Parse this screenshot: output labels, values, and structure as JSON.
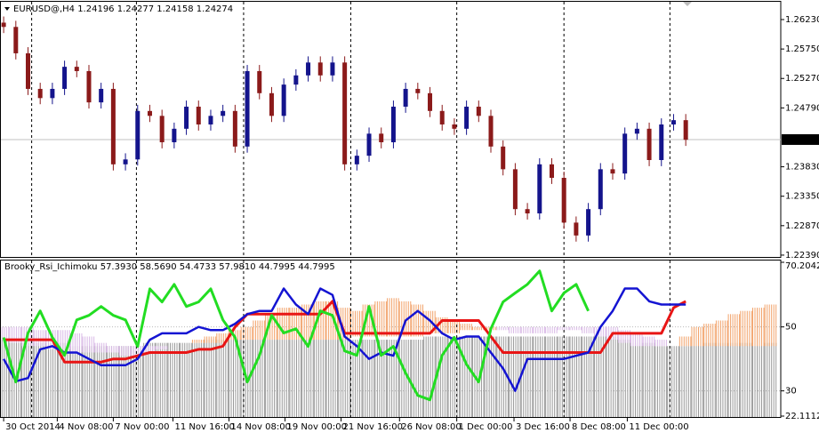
{
  "chart_data": [
    {
      "type": "candlestick",
      "title": "EURUSD@,H4 1.24196 1.24277 1.24158 1.24274",
      "open": [
        1.2618,
        1.2611,
        1.2568,
        1.251,
        1.2495,
        1.251,
        1.2546,
        1.2539,
        1.2488,
        1.251,
        1.2387,
        1.2395,
        1.2474,
        1.2466,
        1.2423,
        1.2445,
        1.2481,
        1.2452,
        1.2466,
        1.2474,
        1.2416,
        1.2539,
        1.2503,
        1.2466,
        1.2517,
        1.2532,
        1.2553,
        1.2532,
        1.2553,
        1.2387,
        1.2401,
        1.2437,
        1.2423,
        1.2481,
        1.251,
        1.2503,
        1.2474,
        1.2452,
        1.2445,
        1.2481,
        1.2466,
        1.2416,
        1.2379,
        1.2314,
        1.2307,
        1.2387,
        1.2365,
        1.2292,
        1.2271,
        1.2314,
        1.2379,
        1.2372,
        1.2437,
        1.2445,
        1.2394,
        1.2452,
        1.2459
      ],
      "high": [
        1.2628,
        1.2621,
        1.2578,
        1.252,
        1.252,
        1.2556,
        1.2556,
        1.2549,
        1.252,
        1.252,
        1.2405,
        1.2484,
        1.2484,
        1.2476,
        1.2455,
        1.2491,
        1.2491,
        1.2476,
        1.2484,
        1.2484,
        1.2549,
        1.2549,
        1.2513,
        1.2527,
        1.2542,
        1.2563,
        1.2563,
        1.2563,
        1.2563,
        1.2411,
        1.2447,
        1.2447,
        1.2491,
        1.252,
        1.252,
        1.2513,
        1.2484,
        1.2462,
        1.2491,
        1.2491,
        1.2476,
        1.2426,
        1.2389,
        1.2324,
        1.2397,
        1.2397,
        1.2375,
        1.2302,
        1.2324,
        1.2389,
        1.2389,
        1.2447,
        1.2455,
        1.2455,
        1.2462,
        1.2469,
        1.2469
      ],
      "low": [
        1.2601,
        1.2558,
        1.25,
        1.2485,
        1.2485,
        1.25,
        1.2529,
        1.2478,
        1.2478,
        1.2377,
        1.2377,
        1.2385,
        1.2456,
        1.2413,
        1.2413,
        1.2435,
        1.2442,
        1.2442,
        1.2456,
        1.2406,
        1.2406,
        1.2493,
        1.2456,
        1.2456,
        1.2507,
        1.2522,
        1.2522,
        1.2522,
        1.2377,
        1.2377,
        1.2391,
        1.2413,
        1.2413,
        1.2471,
        1.2493,
        1.2464,
        1.2442,
        1.2435,
        1.2435,
        1.2456,
        1.2406,
        1.2369,
        1.2304,
        1.2297,
        1.2297,
        1.2355,
        1.2282,
        1.2261,
        1.2261,
        1.2304,
        1.2362,
        1.2362,
        1.2427,
        1.2384,
        1.2384,
        1.2442,
        1.2417
      ],
      "close": [
        1.2611,
        1.2568,
        1.251,
        1.2495,
        1.251,
        1.2546,
        1.2539,
        1.2488,
        1.251,
        1.2387,
        1.2395,
        1.2474,
        1.2466,
        1.2423,
        1.2445,
        1.2481,
        1.2452,
        1.2466,
        1.2474,
        1.2416,
        1.2539,
        1.2503,
        1.2466,
        1.2517,
        1.2532,
        1.2553,
        1.2532,
        1.2553,
        1.2387,
        1.2401,
        1.2437,
        1.2423,
        1.2481,
        1.251,
        1.2503,
        1.2474,
        1.2452,
        1.2445,
        1.2481,
        1.2466,
        1.2416,
        1.2379,
        1.2314,
        1.2307,
        1.2387,
        1.2365,
        1.2292,
        1.2271,
        1.2314,
        1.2379,
        1.2372,
        1.2437,
        1.2445,
        1.2394,
        1.2452,
        1.2459,
        1.2427
      ],
      "up_color": "#14148c",
      "down_color": "#8b1a1a",
      "current_price": 1.24274,
      "ylim": [
        1.2236,
        1.2652
      ],
      "yticks": [
        {
          "value": 1.2623,
          "label": "1.26230"
        },
        {
          "value": 1.2575,
          "label": "1.25750"
        },
        {
          "value": 1.2527,
          "label": "1.25270"
        },
        {
          "value": 1.2479,
          "label": "1.24790"
        },
        {
          "value": 1.2383,
          "label": "1.23830"
        },
        {
          "value": 1.2335,
          "label": "1.23350"
        },
        {
          "value": 1.2287,
          "label": "1.22870"
        },
        {
          "value": 1.2239,
          "label": "1.22390"
        }
      ],
      "xlim": [
        -0.3,
        63.8
      ],
      "xticks": [
        {
          "value": 0,
          "label": "30 Oct 2014"
        },
        {
          "value": 4.4,
          "label": "4 Nov 08:00"
        },
        {
          "value": 9,
          "label": "7 Nov 00:00"
        },
        {
          "value": 13.9,
          "label": "11 Nov 16:00"
        },
        {
          "value": 18.5,
          "label": "14 Nov 08:00"
        },
        {
          "value": 23.1,
          "label": "19 Nov 00:00"
        },
        {
          "value": 27.7,
          "label": "21 Nov 16:00"
        },
        {
          "value": 32.5,
          "label": "26 Nov 08:00"
        },
        {
          "value": 37.2,
          "label": "1 Dec 00:00"
        },
        {
          "value": 41.9,
          "label": "3 Dec 16:00"
        },
        {
          "value": 46.5,
          "label": "8 Dec 08:00"
        },
        {
          "value": 51.2,
          "label": "11 Dec 00:00"
        }
      ],
      "separators": [
        2.3,
        10.9,
        19.7,
        28.5,
        37.2,
        46,
        54.7
      ]
    },
    {
      "type": "indicator",
      "title": "Brooky_Rsi_Ichimoku 57.3930 58.5690 54.4733 57.9810 44.7995 44.7995",
      "ylim": [
        22.1112,
        70.2042
      ],
      "yticks": [
        70.2042,
        50,
        30,
        22.1112
      ],
      "xlim": [
        -0.3,
        63.8
      ],
      "series": [
        {
          "kind": "bars",
          "color": "#9a9a9a",
          "values": [
            46,
            46,
            45,
            45,
            45,
            45,
            44,
            44,
            44,
            44,
            44,
            44,
            45,
            45,
            45,
            45,
            45,
            46,
            46,
            46,
            46,
            46,
            46,
            46,
            46,
            46,
            46,
            46,
            46,
            46,
            46,
            46,
            46,
            46,
            46,
            47,
            47,
            47,
            47,
            47,
            47,
            47,
            47,
            47,
            47,
            47,
            47,
            47,
            47,
            47,
            47,
            46,
            45,
            45,
            44,
            44,
            44,
            45,
            45,
            45,
            45,
            45,
            45,
            45
          ]
        },
        {
          "kind": "cloud",
          "color": "#f2a36b",
          "color2": "#d9b9e6",
          "values": [
            46,
            45,
            44,
            44,
            43,
            43,
            42,
            42,
            42,
            42,
            41,
            41,
            42,
            43,
            44,
            45,
            46,
            47,
            48,
            49,
            50,
            52,
            54,
            56,
            56,
            57,
            58,
            58,
            56,
            55,
            57,
            58,
            59,
            58,
            57,
            55,
            53,
            52,
            51,
            50,
            50,
            49,
            48,
            48,
            48,
            48,
            49,
            49,
            48,
            47,
            46,
            45,
            44,
            44,
            44,
            45,
            47,
            50,
            51,
            52,
            54,
            55,
            56,
            57
          ],
          "values2": [
            50,
            50,
            50,
            49,
            49,
            49,
            48,
            47,
            45,
            44,
            44,
            44,
            44,
            44,
            44,
            45,
            45,
            45,
            45,
            46,
            46,
            46,
            46,
            46,
            46,
            46,
            46,
            46,
            46,
            47,
            47,
            47,
            47,
            47,
            47,
            48,
            48,
            48,
            49,
            49,
            49,
            50,
            50,
            50,
            50,
            50,
            50,
            50,
            50,
            50,
            50,
            49,
            48,
            47,
            46,
            45,
            44,
            44,
            44,
            44,
            44,
            44,
            44,
            44
          ]
        },
        {
          "kind": "line",
          "color": "#e81515",
          "width": 3,
          "values": [
            46,
            46,
            46,
            46,
            46,
            39,
            39,
            39,
            39,
            40,
            40,
            41,
            42,
            42,
            42,
            42,
            43,
            43,
            44,
            50,
            54,
            54,
            54,
            54,
            54,
            54,
            54,
            58,
            48,
            48,
            48,
            48,
            48,
            48,
            48,
            48,
            52,
            52,
            52,
            52,
            47,
            42,
            42,
            42,
            42,
            42,
            42,
            42,
            42,
            42,
            48,
            48,
            48,
            48,
            48,
            56,
            58,
            null,
            null,
            null,
            null,
            null,
            null,
            null
          ]
        },
        {
          "kind": "line",
          "color": "#1414d2",
          "width": 2.5,
          "values": [
            40,
            33,
            34,
            43,
            44,
            42,
            42,
            40,
            38,
            38,
            38,
            40,
            46,
            48,
            48,
            48,
            50,
            49,
            49,
            51,
            54,
            55,
            55,
            62,
            57,
            54,
            62,
            60,
            47,
            44,
            40,
            42,
            41,
            52,
            55,
            52,
            48,
            46,
            47,
            47,
            42,
            37,
            30,
            40,
            40,
            40,
            40,
            41,
            42,
            50,
            55,
            62,
            62,
            58,
            57,
            57,
            57,
            null,
            null,
            null,
            null,
            null,
            null,
            null
          ]
        },
        {
          "kind": "line",
          "color": "#22dd22",
          "width": 3,
          "values": [
            46.7,
            32.8,
            48.1,
            55,
            46.7,
            41.1,
            52.2,
            53.6,
            56.4,
            53.6,
            52.2,
            43.9,
            61.9,
            57.8,
            63.3,
            56.4,
            57.8,
            61.9,
            52.2,
            46.7,
            32.8,
            41.1,
            53.6,
            48.1,
            49.4,
            43.9,
            55,
            53.6,
            42.5,
            41.1,
            56.4,
            41.1,
            43.9,
            35.6,
            28.6,
            27.2,
            41.1,
            46.7,
            38.3,
            32.8,
            49.4,
            57.8,
            60.6,
            63.3,
            67.5,
            55,
            60.6,
            63.3,
            55,
            null,
            null,
            null,
            null,
            null,
            null,
            null,
            null,
            null,
            null,
            null,
            null,
            null,
            null,
            null
          ]
        }
      ]
    }
  ]
}
